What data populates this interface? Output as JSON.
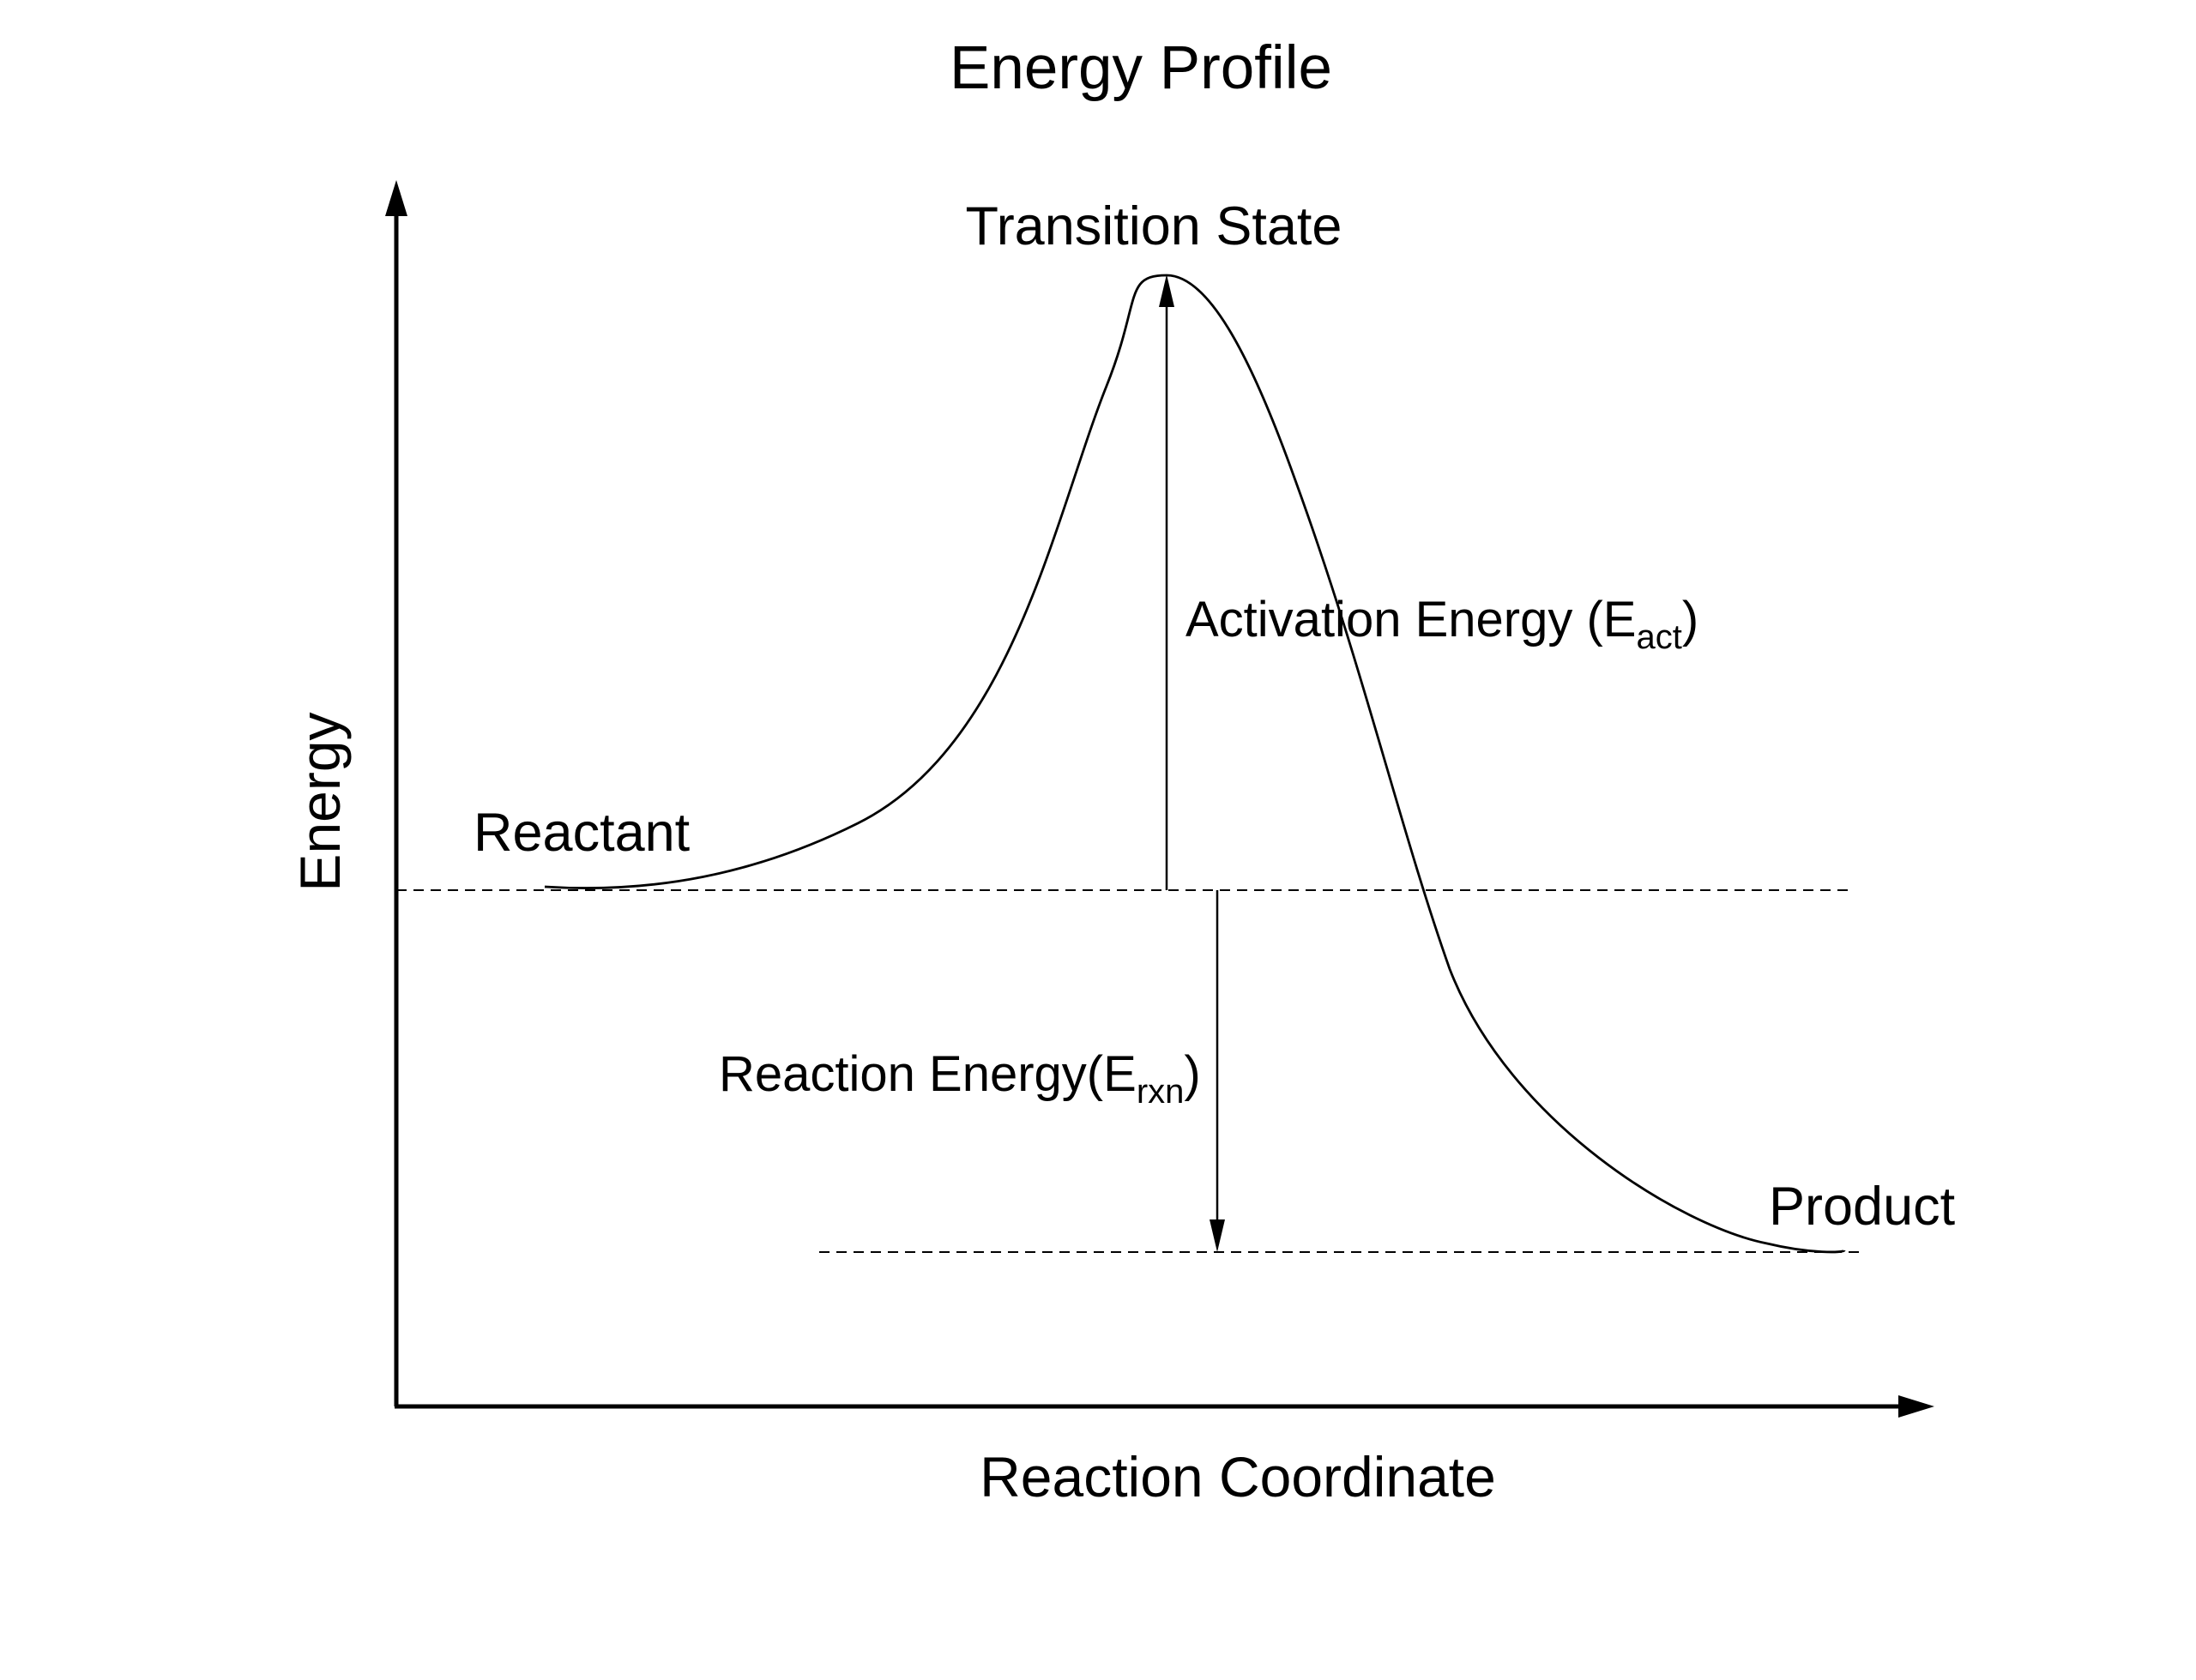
{
  "title": "Energy Profile",
  "axes": {
    "x_label": "Reaction Coordinate",
    "y_label": "Energy"
  },
  "states": {
    "reactant": "Reactant",
    "transition_state": "Transition State",
    "product": "Product"
  },
  "annotations": {
    "activation": {
      "text": "Activation Energy (E",
      "subscript": "act",
      "close": ")"
    },
    "reaction": {
      "text": "Reaction Energy(E",
      "subscript": "rxn",
      "close": ")"
    }
  },
  "colors": {
    "ink": "#000000",
    "background": "#ffffff"
  }
}
